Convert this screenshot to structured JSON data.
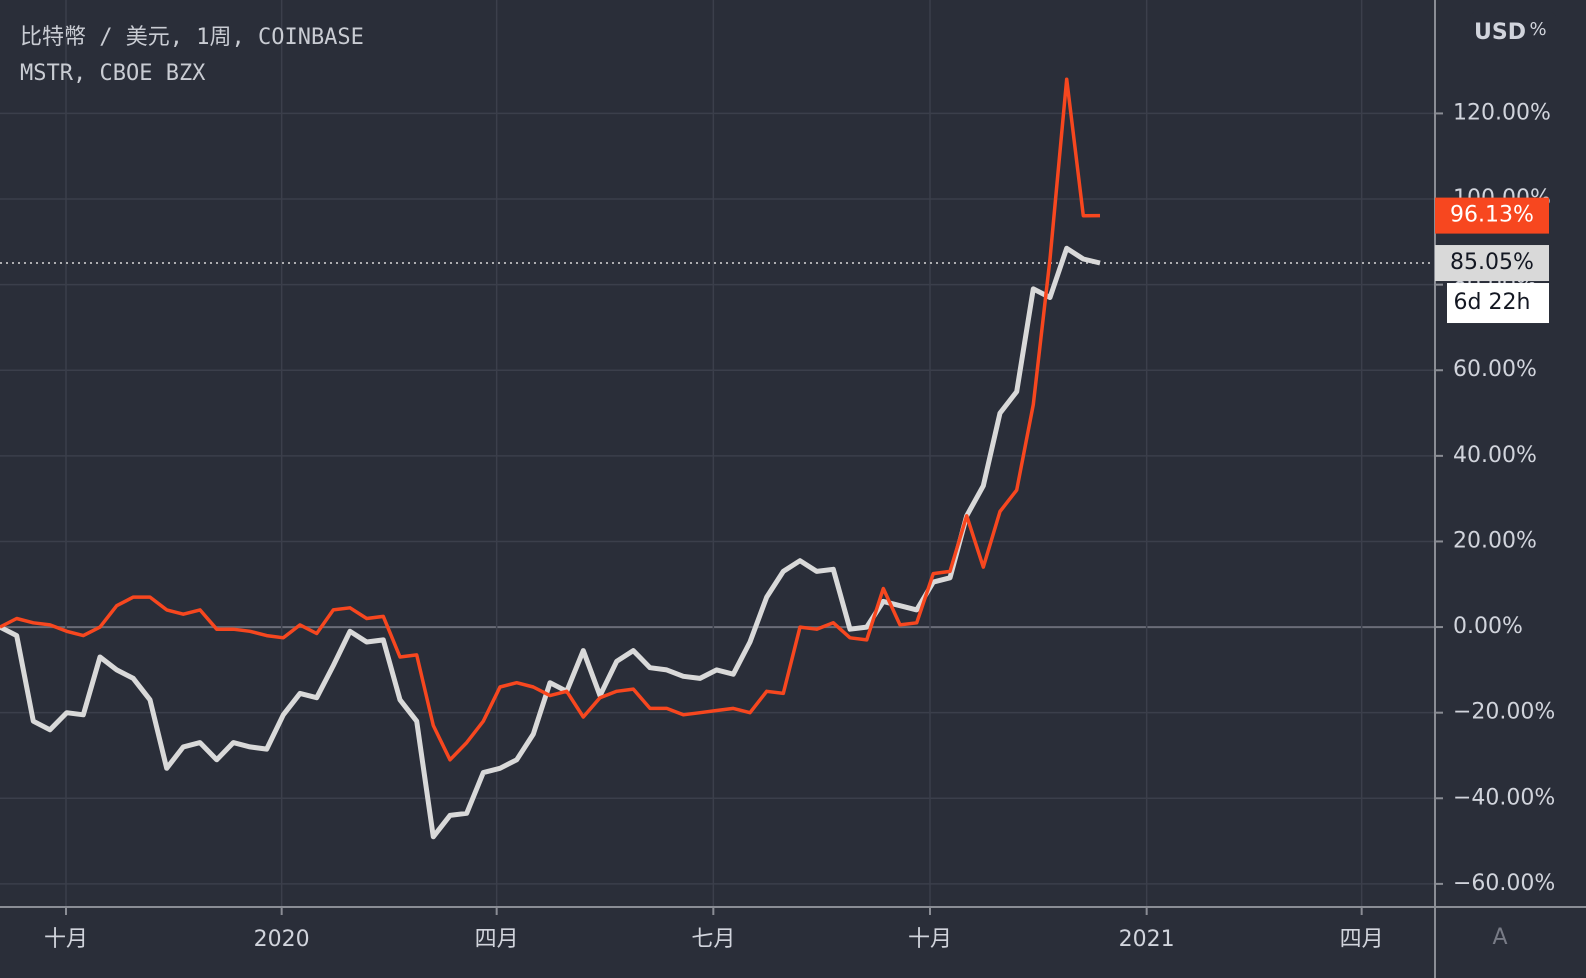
{
  "chart_data": {
    "type": "line",
    "x": [
      0,
      1,
      2,
      3,
      4,
      5,
      6,
      7,
      8,
      9,
      10,
      11,
      12,
      13,
      14,
      15,
      16,
      17,
      18,
      19,
      20,
      21,
      22,
      23,
      24,
      25,
      26,
      27,
      28,
      29,
      30,
      31,
      32,
      33,
      34,
      35,
      36,
      37,
      38,
      39,
      40,
      41,
      42,
      43,
      44,
      45,
      46,
      47,
      48,
      49,
      50,
      51,
      52,
      53,
      54,
      55,
      56,
      57,
      58,
      59,
      60,
      61,
      62,
      63,
      64,
      65,
      66
    ],
    "series": [
      {
        "name": "比特幣 / 美元, 1周, COINBASE",
        "color": "#d9d9d9",
        "label_text_color": "#131722",
        "values": [
          0,
          -2,
          -22,
          -24,
          -20,
          -20.5,
          -7,
          -10,
          -12,
          -17,
          -33,
          -28,
          -27,
          -31,
          -27,
          -28,
          -28.5,
          -20.5,
          -15.5,
          -16.5,
          -9,
          -1,
          -3.5,
          -3,
          -17,
          -22,
          -49,
          -44,
          -43.5,
          -34,
          -33,
          -31,
          -25,
          -13,
          -15,
          -5.5,
          -16,
          -8,
          -5.5,
          -9.5,
          -10,
          -11.5,
          -12,
          -10,
          -11,
          -3.5,
          7,
          13,
          15.5,
          13,
          13.5,
          -0.5,
          0,
          6,
          5,
          4,
          10.5,
          11.5,
          26,
          33,
          50,
          55,
          79,
          77,
          88.5,
          86,
          85.05
        ],
        "value_labels": [
          null,
          null,
          null,
          null,
          null,
          null,
          null,
          null,
          null,
          null,
          null,
          null,
          null,
          null,
          null,
          null,
          null,
          null,
          null,
          null,
          null,
          null,
          null,
          null,
          null,
          null,
          null,
          null,
          null,
          null,
          null,
          null,
          null,
          null,
          null,
          null,
          null,
          null,
          null,
          null,
          null,
          null,
          null,
          null,
          null,
          null,
          null,
          null,
          null,
          null,
          null,
          null,
          null,
          null,
          null,
          null,
          null,
          null,
          null,
          null,
          null,
          null,
          null,
          null,
          null,
          null,
          "85.05%"
        ]
      },
      {
        "name": "MSTR, CBOE BZX",
        "color": "#f7471f",
        "label_text_color": "#ffffff",
        "values": [
          0,
          2,
          1,
          0.5,
          -1,
          -2,
          0,
          5,
          7,
          7,
          4,
          3,
          4,
          -0.5,
          -0.5,
          -1,
          -2,
          -2.5,
          0.5,
          -1.5,
          4,
          4.5,
          2,
          2.5,
          -7,
          -6.5,
          -23,
          -31,
          -27,
          -22,
          -14,
          -13,
          -14,
          -16,
          -15,
          -21,
          -16.5,
          -15,
          -14.5,
          -19,
          -19,
          -20.5,
          -20,
          -19.5,
          -19,
          -20,
          -15,
          -15.5,
          0,
          -0.5,
          1,
          -2.5,
          -3,
          9,
          0.5,
          1,
          12.5,
          13,
          26,
          14,
          27,
          32,
          52,
          86,
          128,
          96.1,
          96.13
        ],
        "value_labels": [
          null,
          null,
          null,
          null,
          null,
          null,
          null,
          null,
          null,
          null,
          null,
          null,
          null,
          null,
          null,
          null,
          null,
          null,
          null,
          null,
          null,
          null,
          null,
          null,
          null,
          null,
          null,
          null,
          null,
          null,
          null,
          null,
          null,
          null,
          null,
          null,
          null,
          null,
          null,
          null,
          null,
          null,
          null,
          null,
          null,
          null,
          null,
          null,
          null,
          null,
          null,
          null,
          null,
          null,
          null,
          null,
          null,
          null,
          null,
          null,
          null,
          null,
          null,
          null,
          null,
          null,
          "96.13%"
        ]
      }
    ],
    "xlim": [
      0,
      86.1
    ],
    "xticks": [
      {
        "value": 3.96,
        "label": "十月"
      },
      {
        "value": 16.9,
        "label": "2020"
      },
      {
        "value": 29.8,
        "label": "四月"
      },
      {
        "value": 42.8,
        "label": "七月"
      },
      {
        "value": 55.8,
        "label": "十月"
      },
      {
        "value": 68.8,
        "label": "2021"
      },
      {
        "value": 81.7,
        "label": "四月"
      }
    ],
    "ylim": [
      -65.4,
      146.5
    ],
    "yticks": [
      {
        "value": -60,
        "label": "−60.00%"
      },
      {
        "value": -40,
        "label": "−40.00%"
      },
      {
        "value": -20,
        "label": "−20.00%"
      },
      {
        "value": 0,
        "label": "0.00%"
      },
      {
        "value": 20,
        "label": "20.00%"
      },
      {
        "value": 40,
        "label": "40.00%"
      },
      {
        "value": 60,
        "label": "60.00%"
      },
      {
        "value": 80,
        "label": "80.00%"
      },
      {
        "value": 100,
        "label": "100.00%"
      },
      {
        "value": 120,
        "label": "120.00%"
      }
    ],
    "grid": true,
    "countdown": "6d 22h",
    "currency": "USD",
    "percent_button": "%",
    "auto_button": "A"
  }
}
